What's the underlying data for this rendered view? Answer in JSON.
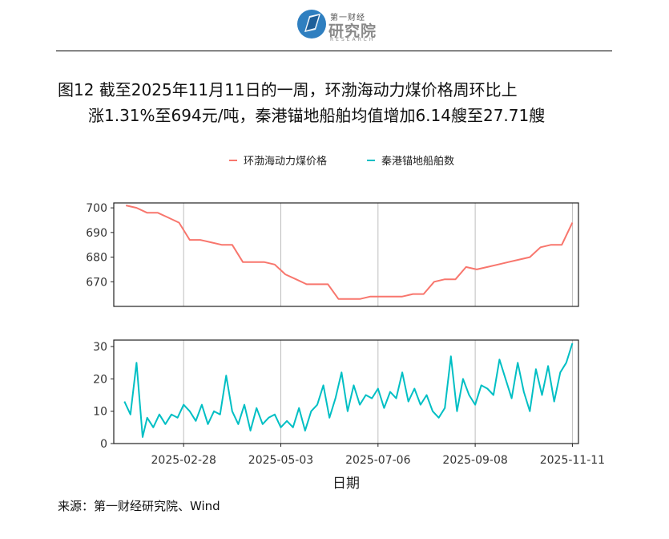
{
  "header": {
    "logo_small": "第一财经",
    "logo_main": "研究院",
    "logo_en": "RESEARCH"
  },
  "title": {
    "line1": "图12  截至2025年11月11日的一周，环渤海动力煤价格周环比上",
    "line2": "涨1.31%至694元/吨，秦港锚地船舶均值增加6.14艘至27.71艘"
  },
  "source": "来源：第一财经研究院、Wind",
  "chart_data": {
    "type": "line",
    "xlabel": "日期",
    "x_ticks": [
      "2025-02-28",
      "2025-05-03",
      "2025-07-06",
      "2025-09-08",
      "2025-11-11"
    ],
    "x_range": [
      "2025-01-13",
      "2025-11-15"
    ],
    "legend_position": "top",
    "legend": [
      {
        "name": "环渤海动力煤价格",
        "color": "#F8766D"
      },
      {
        "name": "秦港锚地船舶数",
        "color": "#00BFC4"
      }
    ],
    "panels": [
      {
        "series": "环渤海动力煤价格",
        "color": "#F8766D",
        "ylim": [
          660,
          702
        ],
        "y_ticks": [
          670,
          680,
          690,
          700
        ],
        "x": [
          "2025-01-21",
          "2025-01-28",
          "2025-02-04",
          "2025-02-11",
          "2025-02-18",
          "2025-02-25",
          "2025-03-04",
          "2025-03-11",
          "2025-03-18",
          "2025-03-25",
          "2025-04-01",
          "2025-04-08",
          "2025-04-15",
          "2025-04-22",
          "2025-04-29",
          "2025-05-06",
          "2025-05-13",
          "2025-05-20",
          "2025-05-27",
          "2025-06-03",
          "2025-06-10",
          "2025-06-17",
          "2025-06-24",
          "2025-07-01",
          "2025-07-08",
          "2025-07-15",
          "2025-07-22",
          "2025-07-29",
          "2025-08-05",
          "2025-08-12",
          "2025-08-19",
          "2025-08-26",
          "2025-09-02",
          "2025-09-09",
          "2025-09-16",
          "2025-09-23",
          "2025-09-30",
          "2025-10-07",
          "2025-10-14",
          "2025-10-21",
          "2025-10-28",
          "2025-11-04",
          "2025-11-11"
        ],
        "y": [
          701,
          700,
          698,
          698,
          696,
          694,
          687,
          687,
          686,
          685,
          685,
          678,
          678,
          678,
          677,
          673,
          671,
          669,
          669,
          669,
          663,
          663,
          663,
          664,
          664,
          664,
          664,
          665,
          665,
          670,
          671,
          671,
          676,
          675,
          676,
          677,
          678,
          679,
          680,
          684,
          685,
          685,
          694
        ]
      },
      {
        "series": "秦港锚地船舶数",
        "color": "#00BFC4",
        "ylim": [
          0,
          32
        ],
        "y_ticks": [
          0,
          10,
          20,
          30
        ],
        "x": [
          "2025-01-20",
          "2025-01-24",
          "2025-01-28",
          "2025-02-01",
          "2025-02-04",
          "2025-02-08",
          "2025-02-12",
          "2025-02-16",
          "2025-02-20",
          "2025-02-24",
          "2025-02-28",
          "2025-03-04",
          "2025-03-08",
          "2025-03-12",
          "2025-03-16",
          "2025-03-20",
          "2025-03-24",
          "2025-03-28",
          "2025-04-01",
          "2025-04-05",
          "2025-04-09",
          "2025-04-13",
          "2025-04-17",
          "2025-04-21",
          "2025-04-25",
          "2025-04-29",
          "2025-05-03",
          "2025-05-07",
          "2025-05-11",
          "2025-05-15",
          "2025-05-19",
          "2025-05-23",
          "2025-05-27",
          "2025-05-31",
          "2025-06-04",
          "2025-06-08",
          "2025-06-12",
          "2025-06-16",
          "2025-06-20",
          "2025-06-24",
          "2025-06-28",
          "2025-07-02",
          "2025-07-06",
          "2025-07-10",
          "2025-07-14",
          "2025-07-18",
          "2025-07-22",
          "2025-07-26",
          "2025-07-30",
          "2025-08-03",
          "2025-08-07",
          "2025-08-11",
          "2025-08-15",
          "2025-08-19",
          "2025-08-23",
          "2025-08-27",
          "2025-08-31",
          "2025-09-04",
          "2025-09-08",
          "2025-09-12",
          "2025-09-16",
          "2025-09-20",
          "2025-09-24",
          "2025-09-28",
          "2025-10-02",
          "2025-10-06",
          "2025-10-10",
          "2025-10-14",
          "2025-10-18",
          "2025-10-22",
          "2025-10-26",
          "2025-10-30",
          "2025-11-03",
          "2025-11-07",
          "2025-11-11"
        ],
        "y": [
          13,
          9,
          25,
          2,
          8,
          5,
          9,
          6,
          9,
          8,
          12,
          10,
          7,
          12,
          6,
          10,
          9,
          21,
          10,
          6,
          12,
          4,
          11,
          6,
          8,
          9,
          5,
          7,
          5,
          11,
          4,
          10,
          12,
          18,
          8,
          14,
          22,
          10,
          18,
          12,
          15,
          14,
          17,
          11,
          16,
          14,
          22,
          13,
          17,
          12,
          15,
          10,
          8,
          11,
          27,
          10,
          20,
          15,
          12,
          18,
          17,
          15,
          26,
          20,
          14,
          25,
          16,
          10,
          23,
          15,
          24,
          13,
          22,
          25,
          31
        ]
      }
    ]
  }
}
